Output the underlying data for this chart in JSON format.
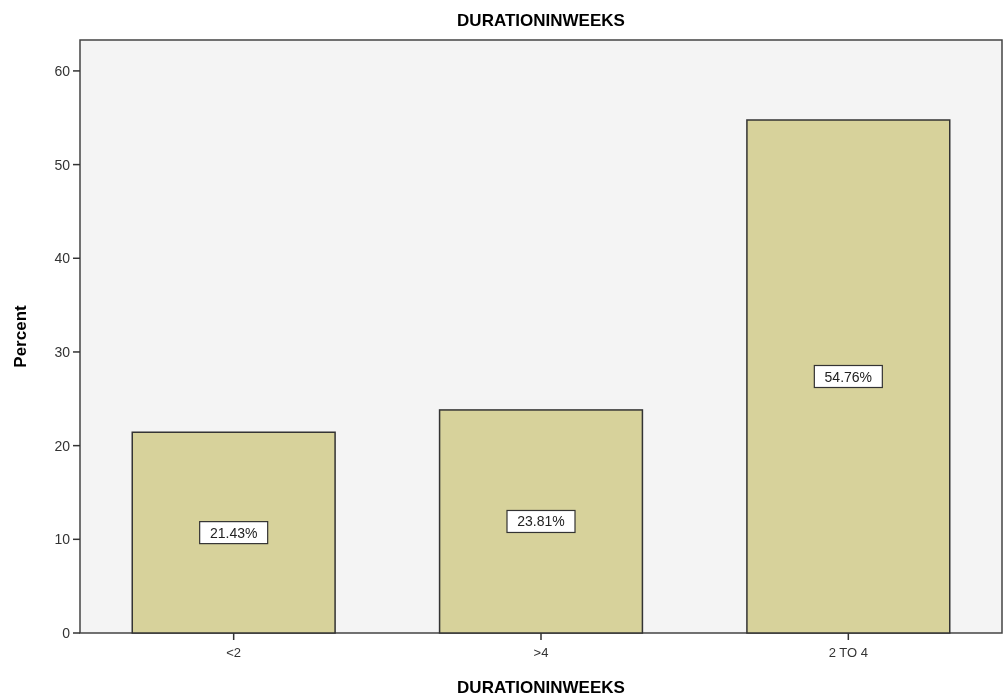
{
  "chart_data": {
    "type": "bar",
    "title": "DURATIONINWEEKS",
    "xlabel": "DURATIONINWEEKS",
    "ylabel": "Percent",
    "categories": [
      "<2",
      ">4",
      "2 TO 4"
    ],
    "values": [
      21.43,
      23.81,
      54.76
    ],
    "value_labels": [
      "21.43%",
      "23.81%",
      "54.76%"
    ],
    "color": "#d7d29b",
    "ylim": [
      0,
      63.3
    ],
    "yticks": [
      0,
      10,
      20,
      30,
      40,
      50,
      60
    ],
    "grid": false
  }
}
